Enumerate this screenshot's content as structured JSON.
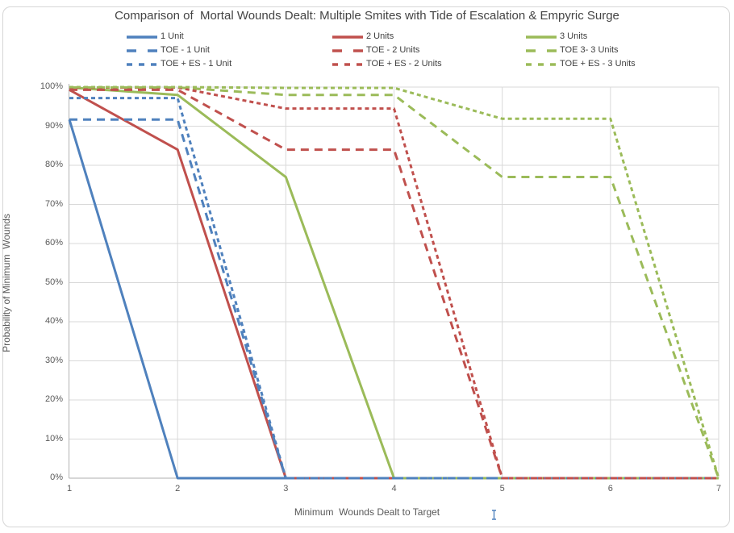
{
  "title": "Comparison of  Mortal Wounds Dealt: Multiple Smites with Tide of Escalation & Empyric Surge",
  "axes": {
    "x_title": "Minimum  Wounds Dealt to Target",
    "y_title": "Probability of Minimum  Wounds",
    "x_ticks": [
      "1",
      "2",
      "3",
      "4",
      "5",
      "6",
      "7"
    ],
    "y_ticks": [
      "0%",
      "10%",
      "20%",
      "30%",
      "40%",
      "50%",
      "60%",
      "70%",
      "80%",
      "90%",
      "100%"
    ]
  },
  "colors": {
    "blue": "#4F81BD",
    "red": "#C0504D",
    "green": "#9BBB59",
    "gridline": "#D9D9D9",
    "axis_line": "#BFBFBF",
    "tick_text": "#595959",
    "title_text": "#444444",
    "frame_border": "#D6D6D6"
  },
  "chart_data": {
    "type": "line",
    "title": "Comparison of  Mortal Wounds Dealt: Multiple Smites with Tide of Escalation & Empyric Surge",
    "xlabel": "Minimum Wounds Dealt to Target",
    "ylabel": "Probability of Minimum Wounds",
    "x": [
      1,
      2,
      3,
      4,
      5,
      6,
      7
    ],
    "xlim": [
      1,
      7
    ],
    "ylim_percent": [
      0,
      100
    ],
    "y_tick_step_percent": 10,
    "grid": true,
    "legend_position": "top",
    "series": [
      {
        "name": "1 Unit",
        "color_key": "blue",
        "dash": "solid",
        "values_percent": [
          91.7,
          0,
          0,
          0,
          0,
          0,
          0
        ]
      },
      {
        "name": "2 Units",
        "color_key": "red",
        "dash": "solid",
        "values_percent": [
          99.3,
          84.0,
          0,
          0,
          0,
          0,
          0
        ]
      },
      {
        "name": "3 Units",
        "color_key": "green",
        "dash": "solid",
        "values_percent": [
          99.9,
          98.0,
          77.0,
          0,
          0,
          0,
          0
        ]
      },
      {
        "name": "TOE - 1 Unit",
        "color_key": "blue",
        "dash": "long-dash",
        "values_percent": [
          91.7,
          91.7,
          0,
          0,
          0,
          0,
          0
        ]
      },
      {
        "name": "TOE - 2 Units",
        "color_key": "red",
        "dash": "long-dash",
        "values_percent": [
          99.3,
          99.3,
          84.0,
          84.0,
          0,
          0,
          0
        ]
      },
      {
        "name": "TOE 3- 3 Units",
        "color_key": "green",
        "dash": "long-dash",
        "values_percent": [
          99.9,
          99.9,
          98.0,
          98.0,
          77.0,
          77.0,
          0
        ]
      },
      {
        "name": "TOE + ES - 1 Unit",
        "color_key": "blue",
        "dash": "short-dash",
        "values_percent": [
          97.2,
          97.2,
          0,
          0,
          0,
          0,
          0
        ]
      },
      {
        "name": "TOE + ES - 2 Units",
        "color_key": "red",
        "dash": "short-dash",
        "values_percent": [
          99.9,
          99.9,
          94.5,
          94.5,
          0,
          0,
          0
        ]
      },
      {
        "name": "TOE + ES - 3 Units",
        "color_key": "green",
        "dash": "short-dash",
        "values_percent": [
          100,
          100,
          99.8,
          99.8,
          91.9,
          91.9,
          0
        ]
      }
    ]
  },
  "legend": {
    "rows": [
      [
        0,
        1,
        2
      ],
      [
        3,
        4,
        5
      ],
      [
        6,
        7,
        8
      ]
    ]
  }
}
